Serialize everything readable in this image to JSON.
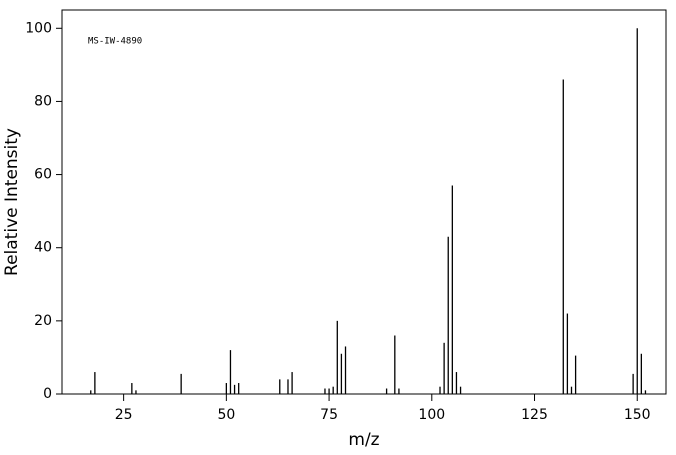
{
  "chart_data": {
    "type": "bar",
    "annotation": "MS-IW-4890",
    "x_label": "m/z",
    "y_label": "Relative Intensity",
    "x": [
      17,
      18,
      27,
      28,
      39,
      50,
      51,
      52,
      53,
      63,
      65,
      66,
      74,
      75,
      76,
      77,
      78,
      79,
      89,
      91,
      92,
      102,
      103,
      104,
      105,
      106,
      107,
      132,
      133,
      134,
      135,
      149,
      150,
      151,
      152
    ],
    "values": [
      1,
      6,
      3,
      1,
      5.5,
      3,
      12,
      2.5,
      3,
      4,
      4,
      6,
      1.5,
      1.5,
      2,
      20,
      11,
      13,
      1.5,
      16,
      1.5,
      2,
      14,
      43,
      57,
      6,
      2,
      86,
      22,
      2,
      10.5,
      5.5,
      100,
      11,
      1
    ],
    "color": "#000000",
    "xlim": [
      10,
      157
    ],
    "ylim": [
      0,
      105
    ],
    "xticks": [
      25,
      50,
      75,
      100,
      125,
      150
    ],
    "yticks": [
      0,
      20,
      40,
      60,
      80,
      100
    ]
  }
}
